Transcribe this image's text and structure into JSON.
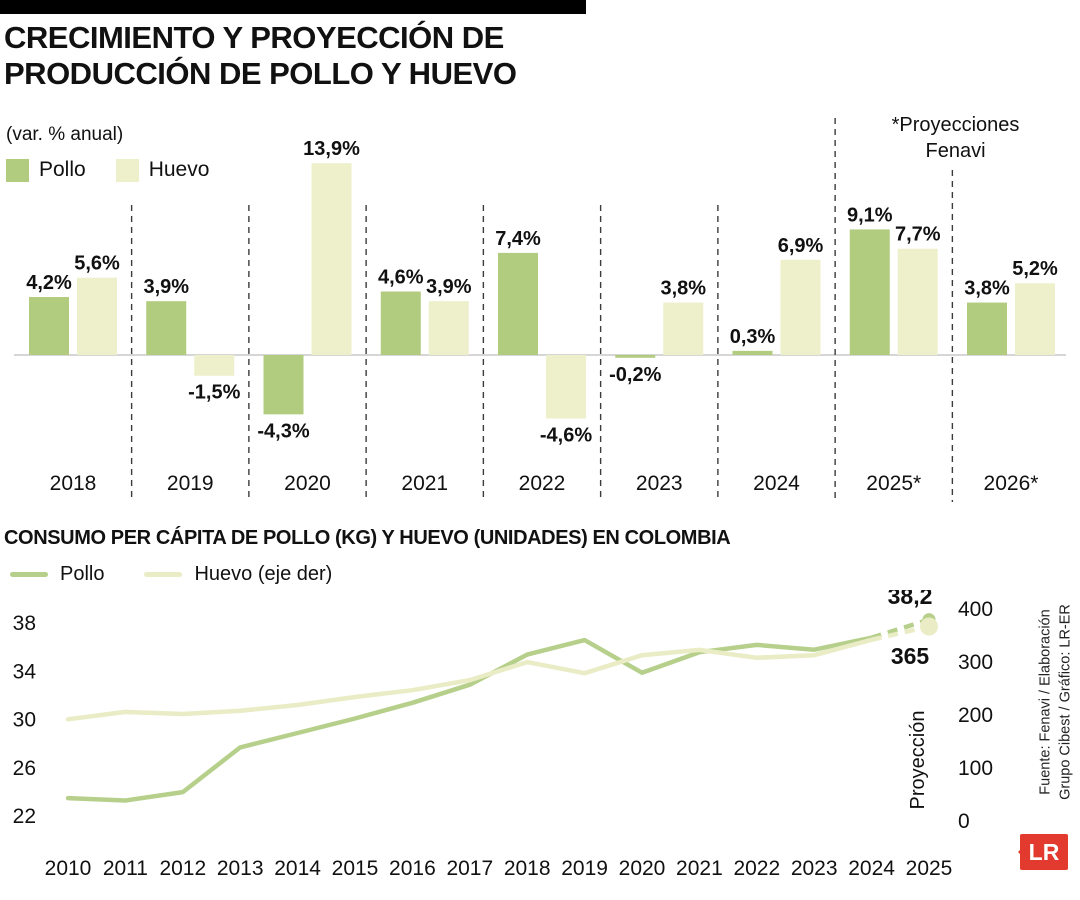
{
  "page": {
    "title_line1": "CRECIMIENTO Y PROYECCIÓN DE",
    "title_line2": "PRODUCCIÓN DE POLLO Y HUEVO"
  },
  "chart_data": [
    {
      "type": "bar",
      "title": "CRECIMIENTO Y PROYECCIÓN DE PRODUCCIÓN DE POLLO Y HUEVO",
      "axis_note": "(var. % anual)",
      "legend": [
        "Pollo",
        "Huevo"
      ],
      "projection_note": [
        "*Proyecciones",
        "Fenavi"
      ],
      "categories": [
        "2018",
        "2019",
        "2020",
        "2021",
        "2022",
        "2023",
        "2024",
        "2025*",
        "2026*"
      ],
      "series": [
        {
          "name": "Pollo",
          "color": "#b1cc7f",
          "values": [
            4.2,
            3.9,
            -4.3,
            4.6,
            7.4,
            -0.2,
            0.3,
            9.1,
            3.8
          ],
          "labels": [
            "4,2%",
            "3,9%",
            "-4,3%",
            "4,6%",
            "7,4%",
            "-0,2%",
            "0,3%",
            "9,1%",
            "3,8%"
          ]
        },
        {
          "name": "Huevo",
          "color": "#edf0ca",
          "values": [
            5.6,
            -1.5,
            13.9,
            3.9,
            -4.6,
            3.8,
            6.9,
            7.7,
            5.2
          ],
          "labels": [
            "5,6%",
            "-1,5%",
            "13,9%",
            "3,9%",
            "-4,6%",
            "3,8%",
            "6,9%",
            "7,7%",
            "5,2%"
          ]
        }
      ],
      "ylim": [
        -6,
        15
      ],
      "grid": false,
      "legend_position": "top-left"
    },
    {
      "type": "line",
      "title": "CONSUMO PER CÁPITA DE POLLO (KG) Y HUEVO (UNIDADES) EN COLOMBIA",
      "legend": [
        "Pollo",
        "Huevo (eje der)"
      ],
      "x": [
        2010,
        2011,
        2012,
        2013,
        2014,
        2015,
        2016,
        2017,
        2018,
        2019,
        2020,
        2021,
        2022,
        2023,
        2024,
        2025
      ],
      "left_axis": {
        "ticks": [
          38,
          34,
          30,
          26,
          22
        ],
        "range": [
          22,
          38
        ]
      },
      "right_axis": {
        "ticks": [
          400,
          300,
          200,
          100,
          0
        ],
        "range": [
          0,
          400
        ]
      },
      "series": [
        {
          "name": "Pollo",
          "axis": "left",
          "color": "#b6d08b",
          "values": [
            23.4,
            23.2,
            23.9,
            27.6,
            28.8,
            30.0,
            31.3,
            32.8,
            35.3,
            36.5,
            33.8,
            35.5,
            36.1,
            35.7,
            36.7,
            38.2
          ],
          "end_label": "38,2",
          "projection_start_index": 14
        },
        {
          "name": "Huevo",
          "axis": "right",
          "color": "#e9ecc5",
          "values": [
            190,
            204,
            200,
            206,
            217,
            232,
            245,
            264,
            298,
            277,
            311,
            321,
            306,
            311,
            340,
            365
          ],
          "end_label": "365",
          "projection_start_index": 14
        }
      ],
      "projection_label": "Proyección",
      "grid": false
    }
  ],
  "footer": {
    "source_line1": "Fuente: Fenavi / Elaboración",
    "source_line2": "Grupo Cibest / Gráfico: LR-ER",
    "logo_text": "LR",
    "logo_color": "#e23a2e"
  }
}
